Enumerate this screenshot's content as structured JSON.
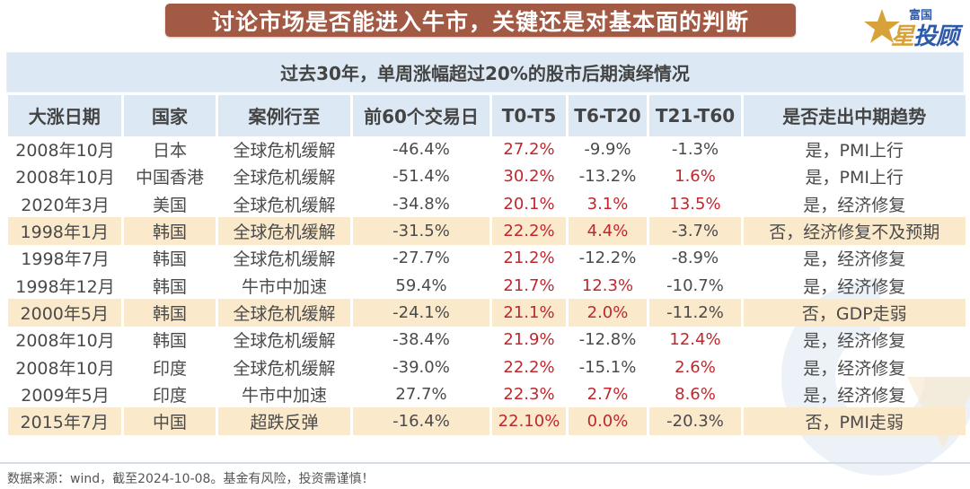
{
  "banner": {
    "title": "讨论市场是否能进入牛市，关键还是对基本面的判断"
  },
  "logo": {
    "small_text": "富国",
    "big_text_gold": "星",
    "big_text_blue": "投顾"
  },
  "table": {
    "caption": "过去30年，单周涨幅超过20%的股市后期演绎情况",
    "columns": [
      "大涨日期",
      "国家",
      "案例行至",
      "前60个交易日",
      "T0-T5",
      "T6-T20",
      "T21-T60",
      "是否走出中期趋势"
    ],
    "rows": [
      {
        "date": "2008年10月",
        "country": "日本",
        "case": "全球危机缓解",
        "pre60": "-46.4%",
        "t0_t5": "27.2%",
        "t6_t20": "-9.9%",
        "t21_t60": "-1.3%",
        "trend": "是，PMI上行",
        "highlight": false
      },
      {
        "date": "2008年10月",
        "country": "中国香港",
        "case": "全球危机缓解",
        "pre60": "-51.4%",
        "t0_t5": "30.2%",
        "t6_t20": "-13.2%",
        "t21_t60": "1.6%",
        "trend": "是，PMI上行",
        "highlight": false
      },
      {
        "date": "2020年3月",
        "country": "美国",
        "case": "全球危机缓解",
        "pre60": "-34.8%",
        "t0_t5": "20.1%",
        "t6_t20": "3.1%",
        "t21_t60": "13.5%",
        "trend": "是，经济修复",
        "highlight": false
      },
      {
        "date": "1998年1月",
        "country": "韩国",
        "case": "全球危机缓解",
        "pre60": "-31.5%",
        "t0_t5": "22.2%",
        "t6_t20": "4.4%",
        "t21_t60": "-3.7%",
        "trend": "否，经济修复不及预期",
        "highlight": true
      },
      {
        "date": "1998年7月",
        "country": "韩国",
        "case": "全球危机缓解",
        "pre60": "-27.7%",
        "t0_t5": "21.2%",
        "t6_t20": "-12.2%",
        "t21_t60": "-8.9%",
        "trend": "是，经济修复",
        "highlight": false
      },
      {
        "date": "1998年12月",
        "country": "韩国",
        "case": "牛市中加速",
        "pre60": "59.4%",
        "t0_t5": "21.7%",
        "t6_t20": "12.3%",
        "t21_t60": "-10.7%",
        "trend": "是，经济修复",
        "highlight": false
      },
      {
        "date": "2000年5月",
        "country": "韩国",
        "case": "全球危机缓解",
        "pre60": "-24.1%",
        "t0_t5": "21.1%",
        "t6_t20": "2.0%",
        "t21_t60": "-11.2%",
        "trend": "否，GDP走弱",
        "highlight": true
      },
      {
        "date": "2008年10月",
        "country": "韩国",
        "case": "全球危机缓解",
        "pre60": "-38.4%",
        "t0_t5": "21.9%",
        "t6_t20": "-12.8%",
        "t21_t60": "12.4%",
        "trend": "是，经济修复",
        "highlight": false
      },
      {
        "date": "2008年10月",
        "country": "印度",
        "case": "全球危机缓解",
        "pre60": "-39.0%",
        "t0_t5": "22.2%",
        "t6_t20": "-15.1%",
        "t21_t60": "2.6%",
        "trend": "是，经济修复",
        "highlight": false
      },
      {
        "date": "2009年5月",
        "country": "印度",
        "case": "牛市中加速",
        "pre60": "27.7%",
        "t0_t5": "22.3%",
        "t6_t20": "2.7%",
        "t21_t60": "8.6%",
        "trend": "是，经济修复",
        "highlight": false
      },
      {
        "date": "2015年7月",
        "country": "中国",
        "case": "超跌反弹",
        "pre60": "-16.4%",
        "t0_t5": "22.10%",
        "t6_t20": "0.0%",
        "t21_t60": "-20.3%",
        "trend": "否，PMI走弱",
        "highlight": true
      }
    ]
  },
  "colors": {
    "banner": "#a35a45",
    "header_bg": "#dce8f3",
    "highlight_row": "#fbe9cc",
    "positive": "#c0272d",
    "text": "#4a4a4a",
    "logo_blue": "#2f5aa8",
    "logo_gold": "#d8a23a"
  },
  "footer": {
    "source": "数据来源：wind，截至2024-10-08。基金有风险，投资需谨慎！"
  }
}
